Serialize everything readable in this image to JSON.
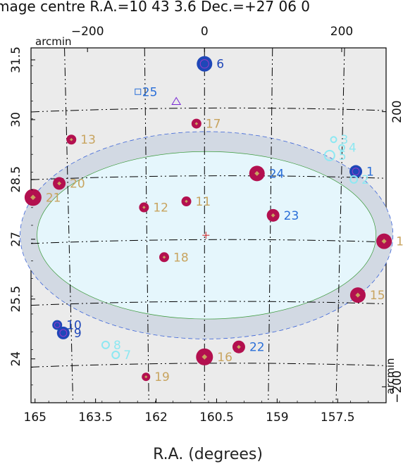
{
  "title_text": "mage centre R.A.=10 43   3.6 Dec.=+27 06   0",
  "colors": {
    "frame_bg": "#ebebeb",
    "ellipse_outer": "#d2d9e3",
    "ellipse_inner": "#e5f6fc",
    "magenta": "#b3104f",
    "dark_blue": "#1f47b8",
    "cyan": "#8de8f2",
    "gold": "#c8a45f",
    "blue_text": "#2a6fd8"
  },
  "chart_data": {
    "type": "scatter",
    "xlabel": "R.A. (degrees)",
    "ylabel": "",
    "x_ticks": [
      "165",
      "163.5",
      "162",
      "160.5",
      "159",
      "157.5"
    ],
    "y_ticks": [
      "31.5",
      "30",
      "28.5",
      "27",
      "25.5",
      "24"
    ],
    "top_ticks": [
      "−200",
      "0",
      "200"
    ],
    "right_ticks": [
      "200",
      "−200"
    ],
    "top_axis_unit": "arcmin",
    "right_axis_unit": "arcmin",
    "xlim": [
      165.1,
      156.3
    ],
    "ylim": [
      22.9,
      31.8
    ],
    "grid": true,
    "centre": {
      "ra": 160.765,
      "dec": 27.1
    },
    "ellipses": [
      {
        "name": "outer",
        "ra": 160.75,
        "dec": 27.1,
        "semi_ra": 4.62,
        "semi_dec": 2.6
      },
      {
        "name": "inner",
        "ra": 160.75,
        "dec": 27.1,
        "semi_ra": 4.2,
        "semi_dec": 2.1
      }
    ],
    "sources": [
      {
        "id": "1",
        "ra": 157.05,
        "dec": 28.7,
        "size": 9,
        "color": "#1f47b8",
        "marker": "circle",
        "label_color": "#2a6fd8"
      },
      {
        "id": "2",
        "ra": 157.1,
        "dec": 28.5,
        "size": 5,
        "color": "#8de8f2",
        "marker": "ring",
        "label_color": "#8de8f2"
      },
      {
        "id": "3",
        "ra": 157.6,
        "dec": 29.5,
        "size": 4,
        "color": "#8de8f2",
        "marker": "ring",
        "label_color": "#8de8f2"
      },
      {
        "id": "4",
        "ra": 157.4,
        "dec": 29.3,
        "size": 4,
        "color": "#8de8f2",
        "marker": "ring",
        "label_color": "#8de8f2"
      },
      {
        "id": "5",
        "ra": 157.7,
        "dec": 29.1,
        "size": 7,
        "color": "#8de8f2",
        "marker": "ring",
        "label_color": "#8de8f2"
      },
      {
        "id": "6",
        "ra": 160.8,
        "dec": 31.4,
        "size": 11,
        "color": "#1f47b8",
        "marker": "circle",
        "label_color": "#1f47b8"
      },
      {
        "id": "7",
        "ra": 163.0,
        "dec": 24.1,
        "size": 5,
        "color": "#8de8f2",
        "marker": "ring",
        "label_color": "#8de8f2"
      },
      {
        "id": "8",
        "ra": 163.25,
        "dec": 24.35,
        "size": 5,
        "color": "#8de8f2",
        "marker": "ring",
        "label_color": "#8de8f2"
      },
      {
        "id": "9",
        "ra": 164.3,
        "dec": 24.65,
        "size": 9,
        "color": "#1f47b8",
        "marker": "circle",
        "label_color": "#1f47b8"
      },
      {
        "id": "10",
        "ra": 164.45,
        "dec": 24.85,
        "size": 7,
        "color": "#1f47b8",
        "marker": "circle",
        "label_color": "#1f47b8"
      },
      {
        "id": "11",
        "ra": 161.25,
        "dec": 27.95,
        "size": 7,
        "color": "#b3104f",
        "marker": "circle",
        "label_color": "#c8a45f"
      },
      {
        "id": "12",
        "ra": 162.3,
        "dec": 27.8,
        "size": 7,
        "color": "#b3104f",
        "marker": "circle",
        "label_color": "#c8a45f"
      },
      {
        "id": "13",
        "ra": 164.1,
        "dec": 29.5,
        "size": 7,
        "color": "#b3104f",
        "marker": "circle",
        "label_color": "#c8a45f"
      },
      {
        "id": "14",
        "ra": 156.35,
        "dec": 26.95,
        "size": 11,
        "color": "#b3104f",
        "marker": "circle",
        "label_color": "#c8a45f"
      },
      {
        "id": "15",
        "ra": 157.0,
        "dec": 25.6,
        "size": 11,
        "color": "#b3104f",
        "marker": "circle",
        "label_color": "#c8a45f"
      },
      {
        "id": "16",
        "ra": 160.8,
        "dec": 24.05,
        "size": 12,
        "color": "#b3104f",
        "marker": "circle",
        "label_color": "#c8a45f"
      },
      {
        "id": "17",
        "ra": 161.0,
        "dec": 29.9,
        "size": 7,
        "color": "#b3104f",
        "marker": "circle",
        "label_color": "#c8a45f"
      },
      {
        "id": "18",
        "ra": 161.8,
        "dec": 26.55,
        "size": 7,
        "color": "#b3104f",
        "marker": "circle",
        "label_color": "#c8a45f"
      },
      {
        "id": "19",
        "ra": 162.25,
        "dec": 23.55,
        "size": 6,
        "color": "#b3104f",
        "marker": "circle",
        "label_color": "#c8a45f"
      },
      {
        "id": "20",
        "ra": 164.4,
        "dec": 28.4,
        "size": 9,
        "color": "#b3104f",
        "marker": "circle",
        "label_color": "#c8a45f"
      },
      {
        "id": "21",
        "ra": 165.05,
        "dec": 28.05,
        "size": 12,
        "color": "#b3104f",
        "marker": "circle",
        "label_color": "#c8a45f"
      },
      {
        "id": "22",
        "ra": 159.95,
        "dec": 24.3,
        "size": 9,
        "color": "#b3104f",
        "marker": "circle",
        "label_color": "#2a6fd8"
      },
      {
        "id": "23",
        "ra": 159.1,
        "dec": 27.6,
        "size": 9,
        "color": "#b3104f",
        "marker": "circle",
        "label_color": "#2a6fd8"
      },
      {
        "id": "24",
        "ra": 159.5,
        "dec": 28.65,
        "size": 11,
        "color": "#b3104f",
        "marker": "circle",
        "label_color": "#2a6fd8"
      },
      {
        "id": "25",
        "ra": 162.45,
        "dec": 30.7,
        "size": 0,
        "color": "#2a6fd8",
        "marker": "square",
        "label_color": "#2a6fd8"
      }
    ],
    "extra_markers": [
      {
        "ra": 161.5,
        "dec": 30.45,
        "shape": "triangle",
        "color": "#7a2ad4"
      }
    ]
  }
}
